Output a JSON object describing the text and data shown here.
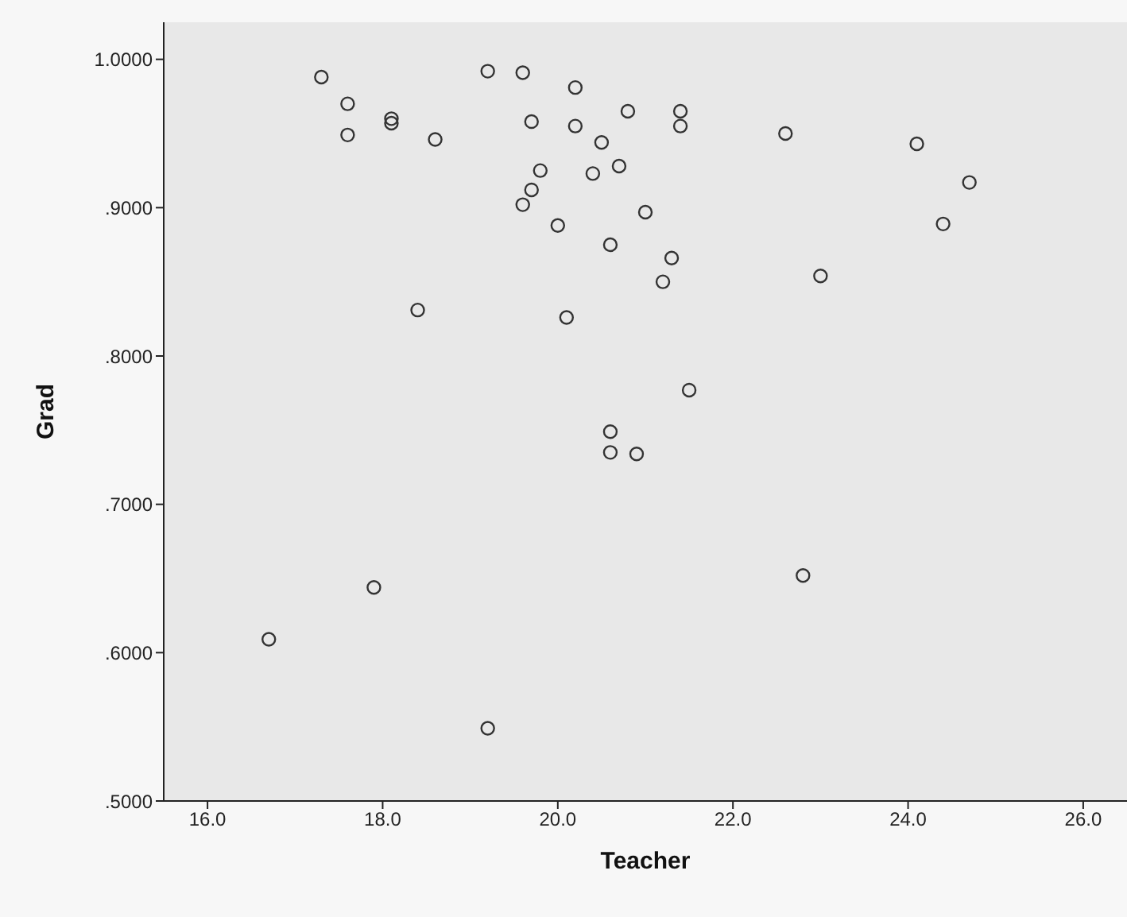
{
  "chart_data": {
    "type": "scatter",
    "xlabel": "Teacher",
    "ylabel": "Grad",
    "x": [
      17.3,
      17.6,
      17.6,
      18.1,
      18.1,
      18.6,
      18.4,
      19.2,
      19.6,
      20.2,
      19.7,
      20.2,
      20.8,
      21.4,
      21.4,
      20.5,
      19.8,
      19.7,
      19.6,
      20.4,
      20.7,
      21.0,
      20.0,
      20.6,
      21.3,
      21.2,
      20.1,
      22.6,
      23.0,
      24.1,
      24.7,
      24.4,
      21.5,
      20.6,
      20.6,
      20.9,
      16.7,
      17.9,
      19.2,
      22.8
    ],
    "series": [
      {
        "color": "#333333",
        "values": [
          0.988,
          0.97,
          0.949,
          0.96,
          0.957,
          0.946,
          0.831,
          0.992,
          0.991,
          0.981,
          0.958,
          0.955,
          0.965,
          0.965,
          0.955,
          0.944,
          0.925,
          0.912,
          0.902,
          0.923,
          0.928,
          0.897,
          0.888,
          0.875,
          0.866,
          0.85,
          0.826,
          0.95,
          0.854,
          0.943,
          0.917,
          0.889,
          0.777,
          0.749,
          0.735,
          0.734,
          0.609,
          0.644,
          0.549,
          0.652
        ]
      }
    ],
    "xlim": [
      15.5,
      26.5
    ],
    "xticks": [
      {
        "value": 16,
        "label": "16.0"
      },
      {
        "value": 18,
        "label": "18.0"
      },
      {
        "value": 20,
        "label": "20.0"
      },
      {
        "value": 22,
        "label": "22.0"
      },
      {
        "value": 24,
        "label": "24.0"
      },
      {
        "value": 26,
        "label": "26.0"
      }
    ],
    "ylim": [
      0.5,
      1.025
    ],
    "yticks": [
      {
        "value": 0.5,
        "label": ".5000"
      },
      {
        "value": 0.6,
        "label": ".6000"
      },
      {
        "value": 0.7,
        "label": ".7000"
      },
      {
        "value": 0.8,
        "label": ".8000"
      },
      {
        "value": 0.9,
        "label": ".9000"
      },
      {
        "value": 1,
        "label": "1.0000"
      }
    ],
    "marker": "circle"
  }
}
